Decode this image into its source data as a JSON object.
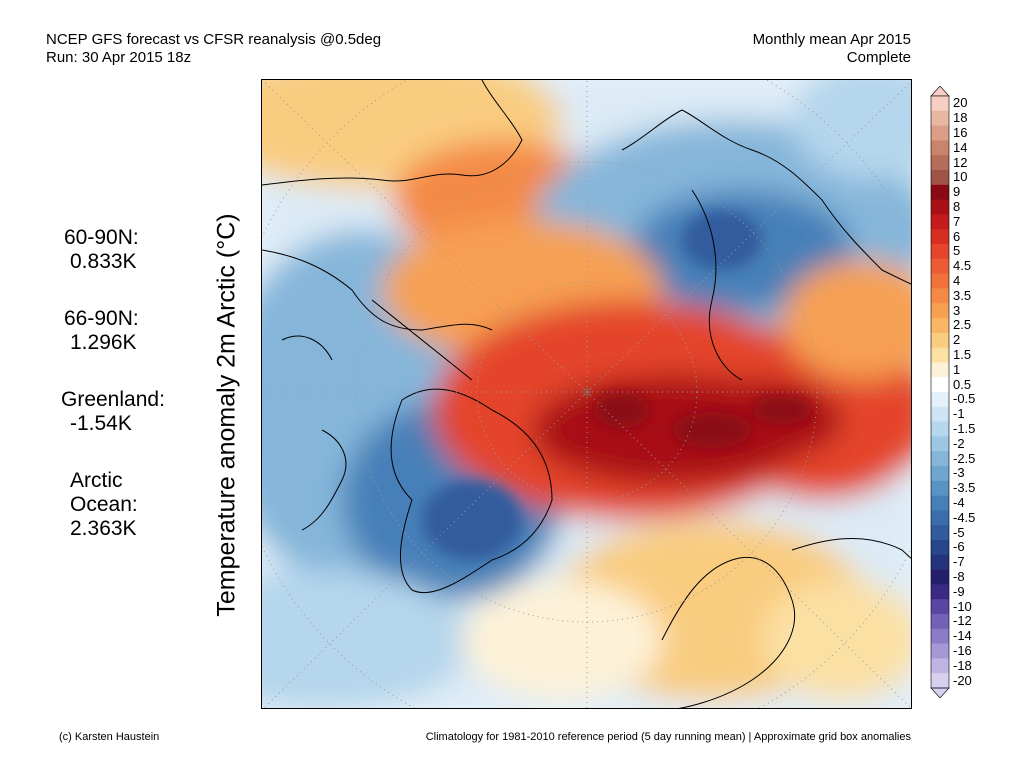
{
  "header": {
    "title_line1": "NCEP GFS forecast vs CFSR reanalysis @0.5deg",
    "title_line2": "Run: 30 Apr 2015 18z",
    "period_line1": "Monthly mean Apr 2015",
    "period_line2": "Complete"
  },
  "stats": [
    {
      "label": "60-90N:",
      "value": "0.833K"
    },
    {
      "label": "66-90N:",
      "value": "1.296K"
    },
    {
      "label": "Greenland:",
      "value": "-1.54K"
    },
    {
      "label": "Arctic",
      "label2": "Ocean:",
      "value": "2.363K"
    }
  ],
  "vertical_title": "Temperature anomaly 2m Arctic (°C)",
  "legend": {
    "labels": [
      "20",
      "18",
      "16",
      "14",
      "12",
      "10",
      "9",
      "8",
      "7",
      "6",
      "5",
      "4.5",
      "4",
      "3.5",
      "3",
      "2.5",
      "2",
      "1.5",
      "1",
      "0.5",
      "-0.5",
      "-1",
      "-1.5",
      "-2",
      "-2.5",
      "-3",
      "-3.5",
      "-4",
      "-4.5",
      "-5",
      "-6",
      "-7",
      "-8",
      "-9",
      "-10",
      "-12",
      "-14",
      "-16",
      "-18",
      "-20"
    ],
    "colors": [
      "#f6cfc2",
      "#e9b6a2",
      "#dc9e86",
      "#c9846c",
      "#b56c58",
      "#a05448",
      "#8a0a14",
      "#a81016",
      "#c41c1c",
      "#d82e22",
      "#e4452c",
      "#ec5c34",
      "#f0723a",
      "#f48a46",
      "#f6a052",
      "#f8b664",
      "#f9cc80",
      "#fbe0a4",
      "#fdf2d8",
      "#ffffff",
      "#e4f1fb",
      "#cde4f4",
      "#b5d6ec",
      "#9cc6e3",
      "#85b6da",
      "#6ea6d0",
      "#5893c4",
      "#4680b8",
      "#3a6dac",
      "#305b9e",
      "#27468e",
      "#24337c",
      "#241f6c",
      "#3a2a86",
      "#5a44a4",
      "#7360b8",
      "#8c7cc8",
      "#a698d6",
      "#bfb4e3",
      "#d8d0ef"
    ]
  },
  "footer": {
    "credit": "(c) Karsten Haustein",
    "note": "Climatology for 1981-2010 reference period (5 day running mean) | Approximate grid box anomalies"
  }
}
